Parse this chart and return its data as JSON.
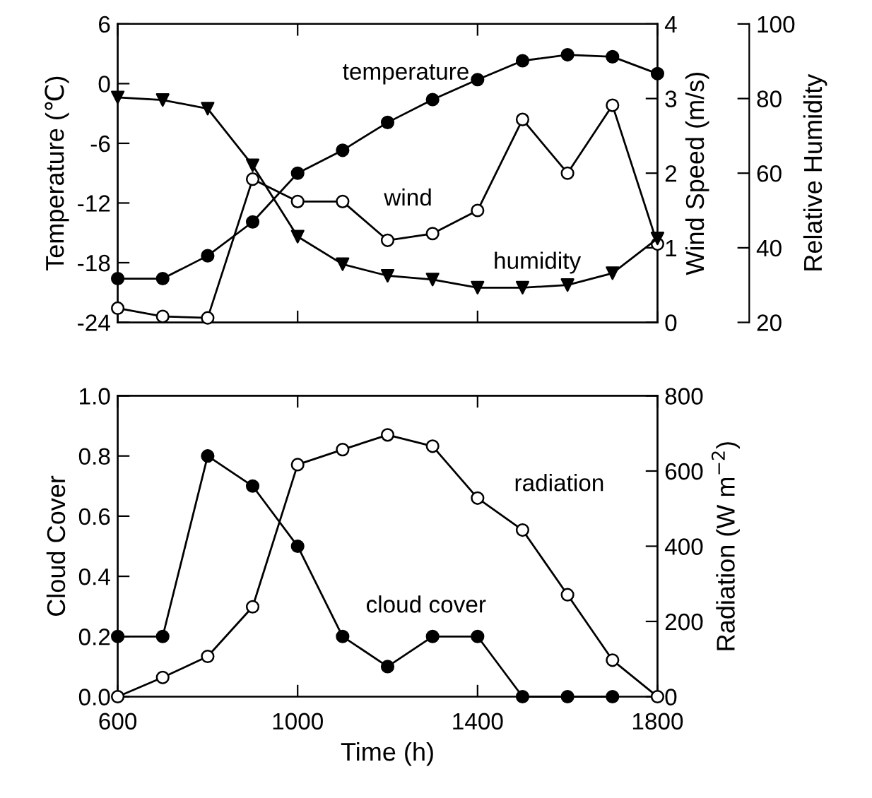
{
  "chart_data": [
    {
      "type": "line",
      "x": [
        600,
        700,
        800,
        900,
        1000,
        1100,
        1200,
        1300,
        1400,
        1500,
        1600,
        1700,
        1800
      ],
      "xlim": [
        600,
        1800
      ],
      "xticks": [
        600,
        1000,
        1400,
        1800
      ],
      "tick_labels": "y",
      "ylabel": "Temperature (℃)",
      "ylim": [
        -24,
        6
      ],
      "yticks": [
        -24,
        -18,
        -12,
        -6,
        0,
        6
      ],
      "y2label": "Wind Speed (m/s)",
      "y2lim": [
        0,
        4
      ],
      "y2ticks": [
        0,
        1,
        2,
        3,
        4
      ],
      "y3label": "Relative Humidity",
      "y3lim": [
        20,
        100
      ],
      "y3ticks": [
        20,
        40,
        60,
        80,
        100
      ],
      "series": [
        {
          "name": "temperature",
          "color": "#000000",
          "marker": "circle",
          "values": [
            -19.6,
            -19.6,
            -17.3,
            -13.9,
            -9.0,
            -6.7,
            -3.9,
            -1.6,
            0.4,
            2.3,
            2.9,
            2.7,
            1.0
          ]
        },
        {
          "name": "wind",
          "color": "#000000",
          "marker": "circle",
          "axis": "y2",
          "values": [
            0.19,
            0.08,
            0.06,
            1.92,
            1.62,
            1.62,
            1.1,
            1.19,
            1.5,
            2.72,
            2.0,
            2.91,
            1.05
          ]
        },
        {
          "name": "humidity",
          "color": "#000000",
          "marker": "triangle",
          "axis": "y3",
          "values": [
            80.3,
            79.6,
            77.3,
            62.1,
            43.0,
            35.6,
            32.5,
            31.5,
            29.3,
            29.3,
            30.0,
            33.2,
            42.5
          ]
        }
      ]
    },
    {
      "type": "line",
      "x": [
        600,
        700,
        800,
        900,
        1000,
        1100,
        1200,
        1300,
        1400,
        1500,
        1600,
        1700,
        1800
      ],
      "xlim": [
        600,
        1800
      ],
      "xticks": [
        600,
        1000,
        1400,
        1800
      ],
      "xlabel": "Time (h)",
      "ylabel": "Cloud Cover",
      "ylim": [
        0,
        1.0
      ],
      "yticks": [
        {
          "value": 0,
          "label": "0.0"
        },
        0.2,
        0.4,
        0.6,
        0.8,
        {
          "value": 1,
          "label": "1.0"
        }
      ],
      "y2label": "Radiation (W m$^{−2}$)",
      "y2lim": [
        0,
        800
      ],
      "y2ticks": [
        0,
        200,
        400,
        600,
        800
      ],
      "series": [
        {
          "name": "cloud cover",
          "color": "#000000",
          "marker": "circle",
          "values": [
            0.2,
            0.2,
            0.8,
            0.7,
            0.5,
            0.2,
            0.1,
            0.2,
            0.2,
            0,
            0,
            0,
            null
          ]
        },
        {
          "name": "radiation",
          "color": "#000000",
          "marker": "circle",
          "axis": "y2",
          "values": [
            0,
            51,
            107,
            239,
            617,
            657,
            696,
            666,
            528,
            443,
            271,
            97,
            0
          ]
        }
      ]
    }
  ]
}
